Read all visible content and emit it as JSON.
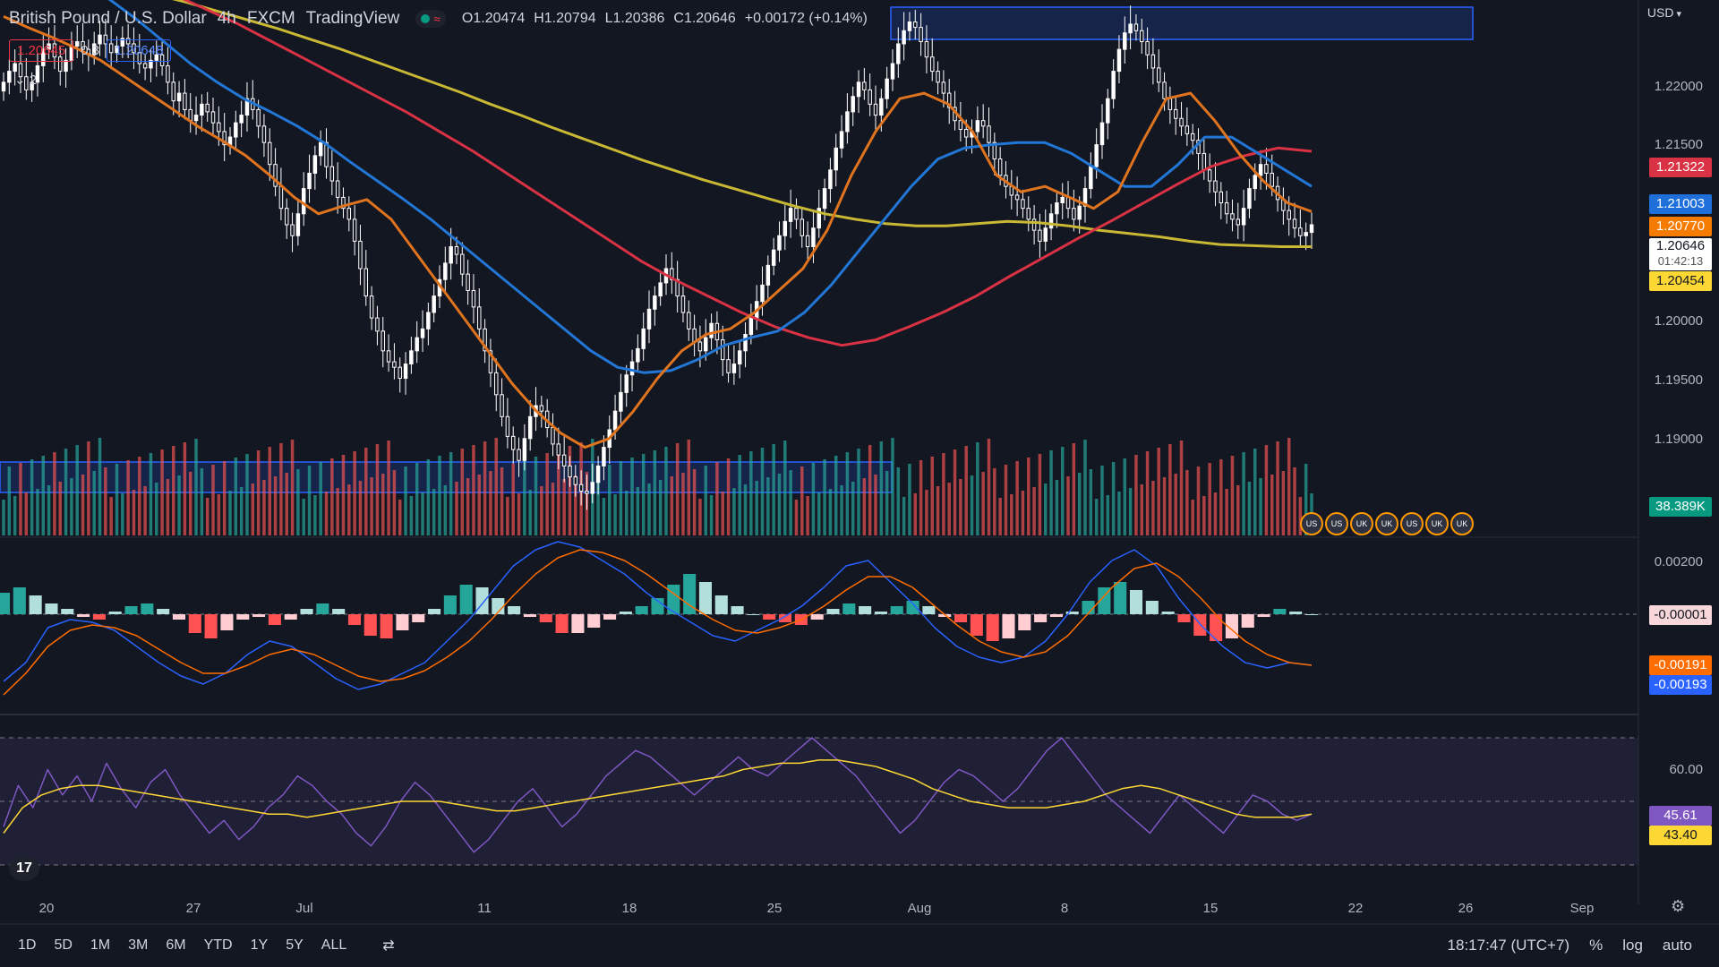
{
  "header": {
    "symbol_name": "British Pound / U.S. Dollar",
    "interval": "4h",
    "exchange": "FXCM",
    "platform": "TradingView",
    "ohlc": {
      "o_label": "O",
      "o": "1.20474",
      "h_label": "H",
      "h": "1.20794",
      "l_label": "L",
      "l": "1.20386",
      "c_label": "C",
      "c": "1.20646",
      "change": "+0.00172 (+0.14%)"
    },
    "bid": "1.20645",
    "spread": "0.3",
    "ask": "1.20648",
    "indicators_toggle": "2"
  },
  "price_scale": {
    "currency": "USD",
    "ticks": [
      "1.22000",
      "1.21500",
      "1.20000",
      "1.19500",
      "1.19000"
    ],
    "labels": {
      "ma_red": "1.21322",
      "ma_blue": "1.21003",
      "ma_orange": "1.20770",
      "last_price": "1.20646",
      "countdown": "01:42:13",
      "ma_yellow": "1.20454",
      "volume": "38.389K"
    }
  },
  "macd_scale": {
    "ticks": [
      "0.00200"
    ],
    "labels": {
      "histogram": "-0.00001",
      "signal": "-0.00191",
      "macd": "-0.00193"
    }
  },
  "rsi_scale": {
    "ticks": [
      "60.00"
    ],
    "labels": {
      "rsi": "45.61",
      "rsi_ma": "43.40"
    }
  },
  "time_axis": {
    "labels": [
      "20",
      "27",
      "Jul",
      "11",
      "18",
      "25",
      "Aug",
      "8",
      "15",
      "22",
      "26",
      "Sep"
    ]
  },
  "bottom_bar": {
    "ranges": [
      "1D",
      "5D",
      "1M",
      "3M",
      "6M",
      "YTD",
      "1Y",
      "5Y",
      "ALL"
    ],
    "clock": "18:17:47 (UTC+7)",
    "percent": "%",
    "log": "log",
    "auto": "auto"
  },
  "logo_text": "17",
  "colors": {
    "background": "#131722",
    "up": "#ffffff",
    "down": "#ffffff",
    "vol_up": "#26a69a",
    "vol_down": "#ef5350",
    "ma_yellow": "#c9b834",
    "ma_orange": "#e0741e",
    "ma_blue": "#2277d6",
    "ma_red": "#d93244",
    "macd_line": "#2962ff",
    "signal_line": "#ff6d00",
    "rsi": "#7e57c2",
    "rsi_ma": "#fdd835",
    "zone": "#2962ff"
  },
  "chart_data": {
    "type": "candlestick",
    "symbol": "GBPUSD",
    "interval": "4h",
    "y_range": [
      1.178,
      1.227
    ],
    "close": [
      1.2195,
      1.2205,
      1.2212,
      1.22,
      1.2188,
      1.2195,
      1.221,
      1.2225,
      1.223,
      1.2218,
      1.2205,
      1.2215,
      1.2228,
      1.2232,
      1.2225,
      1.222,
      1.223,
      1.2238,
      1.223,
      1.2222,
      1.2228,
      1.2235,
      1.223,
      1.2222,
      1.2212,
      1.2208,
      1.2215,
      1.222,
      1.221,
      1.2195,
      1.2178,
      1.2185,
      1.217,
      1.216,
      1.2165,
      1.2175,
      1.2168,
      1.2158,
      1.215,
      1.2138,
      1.2145,
      1.2158,
      1.2165,
      1.218,
      1.217,
      1.2155,
      1.214,
      1.212,
      1.21,
      1.208,
      1.2065,
      1.2055,
      1.2075,
      1.2098,
      1.2112,
      1.2128,
      1.214,
      1.2118,
      1.2105,
      1.209,
      1.208,
      1.207,
      1.205,
      1.2025,
      1.2,
      1.198,
      1.1968,
      1.195,
      1.194,
      1.1935,
      1.1925,
      1.1938,
      1.195,
      1.1962,
      1.197,
      1.1985,
      1.2,
      1.2015,
      1.203,
      1.2045,
      1.2038,
      1.202,
      1.2005,
      1.199,
      1.197,
      1.195,
      1.193,
      1.191,
      1.189,
      1.1872,
      1.186,
      1.185,
      1.187,
      1.189,
      1.19,
      1.1895,
      1.188,
      1.1865,
      1.1855,
      1.1845,
      1.1835,
      1.1828,
      1.1822,
      1.182,
      1.183,
      1.1845,
      1.1862,
      1.1878,
      1.1895,
      1.1912,
      1.1928,
      1.194,
      1.1952,
      1.197,
      1.1988,
      1.2,
      1.2012,
      1.2025,
      1.2015,
      1.2,
      1.1985,
      1.197,
      1.1958,
      1.195,
      1.1962,
      1.1975,
      1.196,
      1.1942,
      1.193,
      1.1938,
      1.195,
      1.1965,
      1.198,
      1.1995,
      1.201,
      1.2028,
      1.2042,
      1.2055,
      1.2068,
      1.208,
      1.207,
      1.2055,
      1.2045,
      1.2062,
      1.208,
      1.2098,
      1.2115,
      1.2135,
      1.215,
      1.2168,
      1.2182,
      1.2195,
      1.2188,
      1.2175,
      1.2165,
      1.218,
      1.2198,
      1.2212,
      1.223,
      1.2242,
      1.225,
      1.2245,
      1.2232,
      1.2218,
      1.2205,
      1.2195,
      1.2185,
      1.2172,
      1.216,
      1.2152,
      1.2145,
      1.215,
      1.216,
      1.2155,
      1.214,
      1.2125,
      1.211,
      1.21,
      1.2092,
      1.2088,
      1.208,
      1.207,
      1.206,
      1.205,
      1.2062,
      1.2075,
      1.2085,
      1.209,
      1.208,
      1.207,
      1.2082,
      1.2098,
      1.2118,
      1.2138,
      1.2158,
      1.218,
      1.2205,
      1.2225,
      1.224,
      1.2248,
      1.2242,
      1.2232,
      1.222,
      1.2208,
      1.2195,
      1.218,
      1.217,
      1.2162,
      1.2155,
      1.2148,
      1.2142,
      1.213,
      1.2115,
      1.2105,
      1.2095,
      1.2085,
      1.2075,
      1.207,
      1.2065,
      1.208,
      1.2098,
      1.211,
      1.212,
      1.2112,
      1.21,
      1.2088,
      1.2078,
      1.207,
      1.2062,
      1.2055,
      1.2058,
      1.2065
    ],
    "ma_yellow": [
      1.23,
      1.2295,
      1.229,
      1.2285,
      1.228,
      1.2275,
      1.2268,
      1.226,
      1.2252,
      1.2244,
      1.2235,
      1.2226,
      1.2216,
      1.2206,
      1.2196,
      1.2186,
      1.2175,
      1.2165,
      1.2154,
      1.2144,
      1.2134,
      1.2124,
      1.2115,
      1.2106,
      1.2098,
      1.209,
      1.2082,
      1.2075,
      1.207,
      1.2066,
      1.2064,
      1.2064,
      1.2066,
      1.2068,
      1.2067,
      1.2064,
      1.206,
      1.2057,
      1.2054,
      1.205,
      1.2047,
      1.2046,
      1.2045,
      1.2045
    ],
    "ma_orange": [
      1.2255,
      1.2245,
      1.2236,
      1.2226,
      1.2215,
      1.22,
      1.2185,
      1.217,
      1.2155,
      1.2142,
      1.2128,
      1.211,
      1.209,
      1.2075,
      1.2082,
      1.2088,
      1.207,
      1.204,
      1.201,
      1.198,
      1.195,
      1.192,
      1.1895,
      1.1875,
      1.1862,
      1.187,
      1.1895,
      1.1925,
      1.195,
      1.1965,
      1.197,
      1.1985,
      1.2005,
      1.2025,
      1.206,
      1.211,
      1.215,
      1.218,
      1.2185,
      1.2175,
      1.215,
      1.211,
      1.2095,
      1.21,
      1.209,
      1.208,
      1.2095,
      1.214,
      1.218,
      1.2185,
      1.216,
      1.213,
      1.2105,
      1.2085,
      1.2077
    ],
    "ma_blue": [
      1.2305,
      1.23,
      1.2295,
      1.2285,
      1.227,
      1.2252,
      1.2232,
      1.2212,
      1.2195,
      1.218,
      1.2168,
      1.2155,
      1.214,
      1.2122,
      1.2105,
      1.2088,
      1.207,
      1.205,
      1.203,
      1.201,
      1.199,
      1.197,
      1.195,
      1.1935,
      1.193,
      1.1932,
      1.1942,
      1.1955,
      1.1962,
      1.1968,
      1.1985,
      1.201,
      1.204,
      1.207,
      1.21,
      1.2125,
      1.2135,
      1.2138,
      1.214,
      1.214,
      1.213,
      1.2115,
      1.21,
      1.21,
      1.212,
      1.2145,
      1.2145,
      1.213,
      1.2115,
      1.21
    ],
    "ma_red": [
      1.233,
      1.2322,
      1.2312,
      1.2302,
      1.229,
      1.2276,
      1.2262,
      1.2248,
      1.2232,
      1.2216,
      1.22,
      1.2184,
      1.2168,
      1.215,
      1.2132,
      1.2112,
      1.2092,
      1.2072,
      1.2052,
      1.2032,
      1.2015,
      1.2,
      1.1985,
      1.1972,
      1.1962,
      1.1955,
      1.196,
      1.1972,
      1.1985,
      1.2,
      1.2018,
      1.2035,
      1.2052,
      1.2068,
      1.2085,
      1.2102,
      1.2118,
      1.2128,
      1.2135,
      1.2132
    ],
    "macd_hist": [
      0.0008,
      0.001,
      0.0007,
      0.0004,
      0.0002,
      -0.0001,
      -0.0002,
      0.0001,
      0.0003,
      0.0004,
      0.0002,
      -0.0002,
      -0.0007,
      -0.0009,
      -0.0006,
      -0.0002,
      -0.0001,
      -0.0004,
      -0.0002,
      0.0002,
      0.0004,
      0.0002,
      -0.0004,
      -0.0008,
      -0.0009,
      -0.0006,
      -0.0003,
      0.0002,
      0.0007,
      0.0011,
      0.001,
      0.0006,
      0.0003,
      -0.0001,
      -0.0003,
      -0.0007,
      -0.0007,
      -0.0005,
      -0.0002,
      0.0001,
      0.0003,
      0.0006,
      0.0011,
      0.0015,
      0.0012,
      0.0007,
      0.0003,
      0.0,
      -0.0002,
      -0.0003,
      -0.0004,
      -0.0002,
      0.0002,
      0.0004,
      0.0003,
      0.0001,
      0.0003,
      0.0005,
      0.0003,
      -0.0001,
      -0.0003,
      -0.0008,
      -0.001,
      -0.0009,
      -0.0006,
      -0.0003,
      -0.0001,
      0.0001,
      0.0005,
      0.001,
      0.0012,
      0.0009,
      0.0005,
      0.0001,
      -0.0003,
      -0.0008,
      -0.001,
      -0.0009,
      -0.0005,
      -0.0001,
      0.0002,
      0.0001,
      0.0
    ],
    "macd_line": [
      -0.0025,
      -0.0018,
      -0.0005,
      -0.0002,
      -0.0003,
      -0.0006,
      -0.0012,
      -0.0018,
      -0.0023,
      -0.0026,
      -0.0022,
      -0.0015,
      -0.001,
      -0.0012,
      -0.0018,
      -0.0024,
      -0.0028,
      -0.0026,
      -0.0022,
      -0.0018,
      -0.001,
      -0.0002,
      0.0008,
      0.0018,
      0.0024,
      0.0027,
      0.0025,
      0.002,
      0.0015,
      0.0008,
      0.0002,
      -0.0003,
      -0.0008,
      -0.001,
      -0.0006,
      -0.0002,
      0.0003,
      0.001,
      0.0018,
      0.002,
      0.0012,
      0.0004,
      -0.0005,
      -0.0012,
      -0.0016,
      -0.0018,
      -0.0016,
      -0.001,
      0.0,
      0.0012,
      0.002,
      0.0024,
      0.0018,
      0.0006,
      -0.0004,
      -0.0012,
      -0.0018,
      -0.002,
      -0.0018,
      -0.0019
    ],
    "signal_line": [
      -0.003,
      -0.0022,
      -0.0012,
      -0.0006,
      -0.0004,
      -0.0005,
      -0.0008,
      -0.0013,
      -0.0018,
      -0.0022,
      -0.0022,
      -0.0019,
      -0.0015,
      -0.0013,
      -0.0015,
      -0.0019,
      -0.0023,
      -0.0025,
      -0.0024,
      -0.0021,
      -0.0016,
      -0.001,
      -0.0002,
      0.0007,
      0.0015,
      0.0021,
      0.0024,
      0.0023,
      0.002,
      0.0015,
      0.0009,
      0.0003,
      -0.0002,
      -0.0006,
      -0.0007,
      -0.0005,
      -0.0002,
      0.0003,
      0.0009,
      0.0014,
      0.0014,
      0.001,
      0.0003,
      -0.0004,
      -0.001,
      -0.0014,
      -0.0016,
      -0.0014,
      -0.0008,
      0.0001,
      0.001,
      0.0017,
      0.0019,
      0.0014,
      0.0006,
      -0.0003,
      -0.001,
      -0.0015,
      -0.0018,
      -0.0019
    ],
    "rsi": [
      42,
      55,
      48,
      60,
      52,
      58,
      50,
      62,
      54,
      48,
      56,
      60,
      52,
      46,
      40,
      44,
      38,
      42,
      48,
      52,
      58,
      55,
      50,
      46,
      40,
      36,
      42,
      50,
      56,
      52,
      46,
      40,
      34,
      38,
      44,
      50,
      54,
      48,
      42,
      46,
      52,
      58,
      62,
      66,
      64,
      60,
      56,
      52,
      56,
      60,
      64,
      60,
      58,
      62,
      66,
      70,
      66,
      62,
      58,
      52,
      46,
      40,
      44,
      50,
      56,
      60,
      58,
      54,
      50,
      54,
      60,
      66,
      70,
      64,
      58,
      52,
      48,
      44,
      40,
      46,
      52,
      48,
      44,
      40,
      46,
      52,
      50,
      46,
      44,
      46
    ],
    "rsi_ma": [
      40,
      48,
      52,
      54,
      55,
      55,
      54,
      53,
      52,
      51,
      50,
      49,
      48,
      47,
      46,
      46,
      45,
      46,
      47,
      48,
      49,
      50,
      50,
      50,
      49,
      48,
      47,
      47,
      48,
      49,
      50,
      51,
      52,
      53,
      54,
      55,
      56,
      57,
      58,
      60,
      61,
      62,
      62,
      63,
      63,
      62,
      61,
      59,
      57,
      54,
      52,
      50,
      49,
      48,
      48,
      48,
      49,
      50,
      52,
      54,
      55,
      54,
      52,
      50,
      48,
      46,
      45,
      45,
      45,
      46
    ]
  }
}
